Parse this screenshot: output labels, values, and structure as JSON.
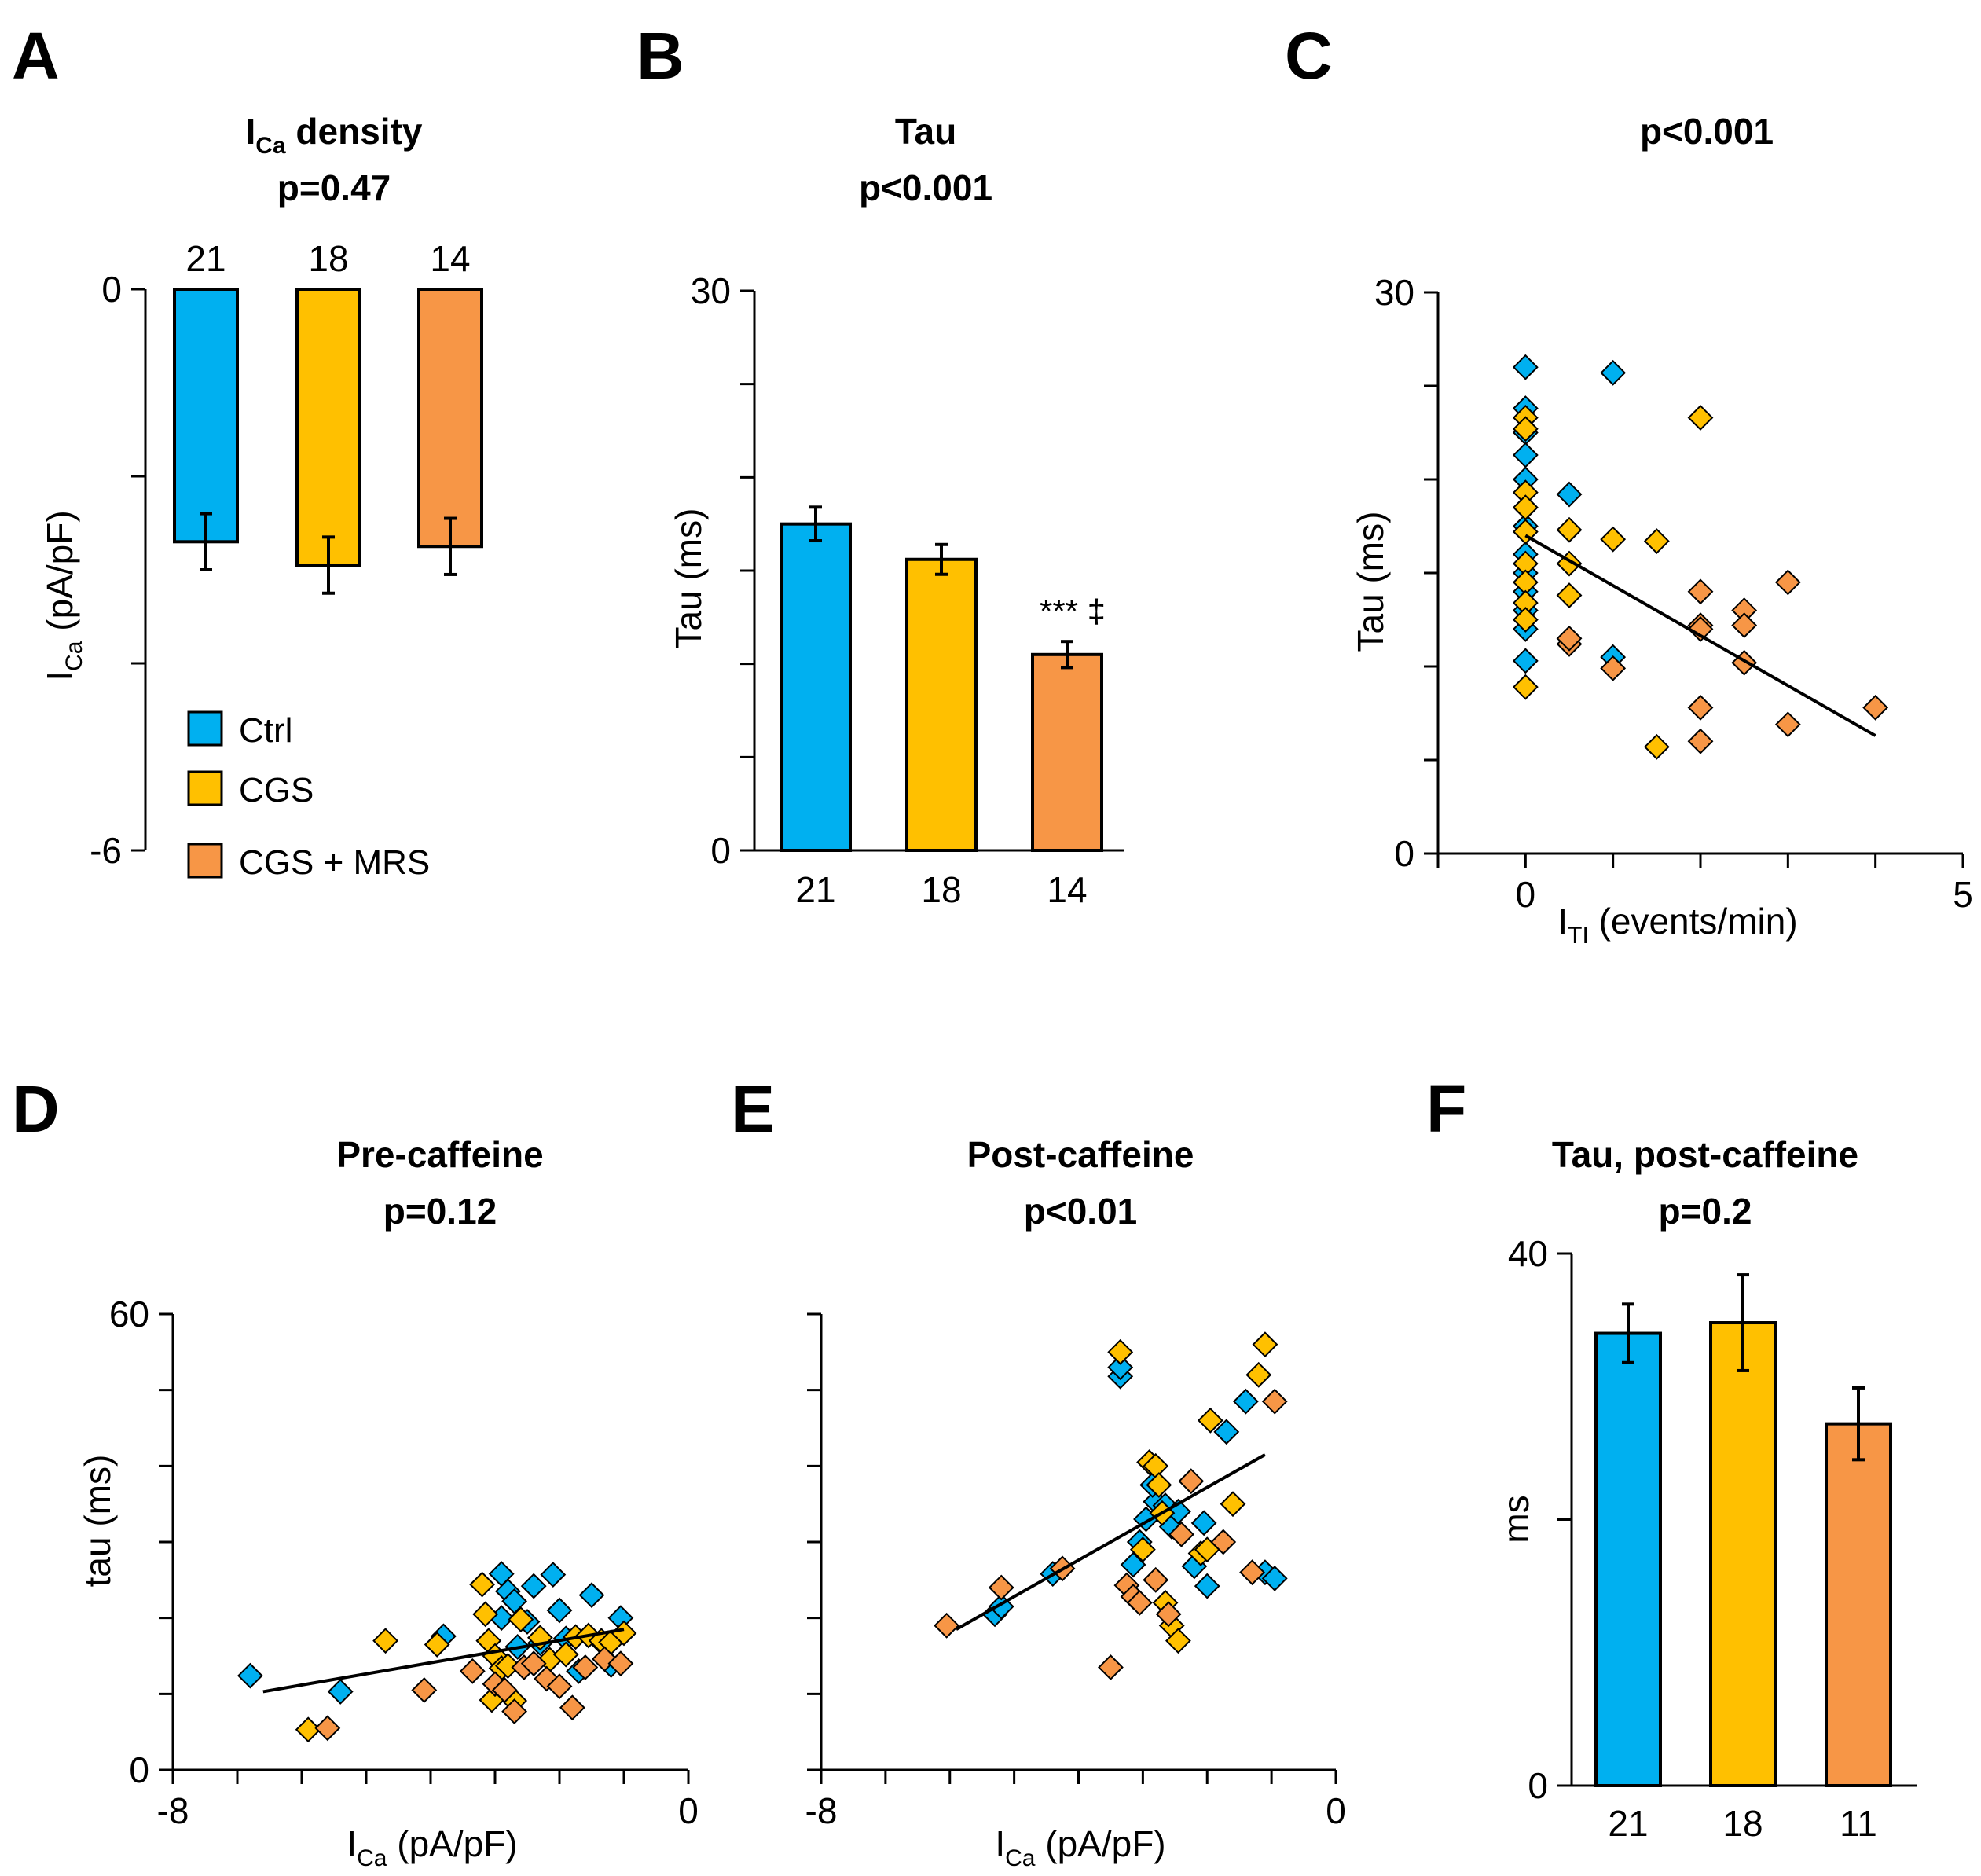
{
  "colors": {
    "ctrl": "#00B0F0",
    "cgs": "#FFC000",
    "cgs_mrs": "#F79646",
    "axis": "#000000"
  },
  "chart_data": [
    {
      "panel": "A",
      "type": "bar",
      "title_main": "I",
      "title_sub": "Ca",
      "title_rest": " density",
      "pvalue": "p=0.47",
      "categories": [
        "Ctrl",
        "CGS",
        "CGS + MRS"
      ],
      "values": [
        -2.7,
        -2.95,
        -2.75
      ],
      "errors": [
        0.3,
        0.3,
        0.3
      ],
      "n": [
        "21",
        "18",
        "14"
      ],
      "ylim": [
        -6,
        0
      ],
      "yticks": [
        0,
        -2,
        -4,
        -6
      ],
      "ytick_labels": [
        "0",
        "",
        "",
        "-6"
      ],
      "ylabel_main": "I",
      "ylabel_sub": "Ca",
      "ylabel_rest": " (pA/pF)",
      "legend": [
        "Ctrl",
        "CGS",
        "CGS + MRS"
      ]
    },
    {
      "panel": "B",
      "type": "bar",
      "title": "Tau",
      "pvalue": "p<0.001",
      "categories": [
        "Ctrl",
        "CGS",
        "CGS + MRS"
      ],
      "values": [
        17.5,
        15.6,
        10.5
      ],
      "errors": [
        0.9,
        0.8,
        0.7
      ],
      "n": [
        "21",
        "18",
        "14"
      ],
      "ylim": [
        0,
        30
      ],
      "yticks": [
        0,
        5,
        10,
        15,
        20,
        25,
        30
      ],
      "ytick_labels": [
        "0",
        "",
        "",
        "",
        "",
        "",
        "30"
      ],
      "ylabel": "Tau (ms)",
      "annotation": "*** ‡"
    },
    {
      "panel": "C",
      "type": "scatter",
      "title": "p<0.001",
      "xlim": [
        -1,
        5
      ],
      "ylim": [
        0,
        30
      ],
      "xticks": [
        -1,
        0,
        1,
        2,
        3,
        4,
        5
      ],
      "xtick_labels": [
        "",
        "0",
        "",
        "",
        "",
        "",
        "5"
      ],
      "yticks": [
        0,
        5,
        10,
        15,
        20,
        25,
        30
      ],
      "ytick_labels": [
        "0",
        "",
        "",
        "",
        "",
        "",
        "30"
      ],
      "xlabel_main": "I",
      "xlabel_sub": "TI",
      "xlabel_rest": " (events/min)",
      "ylabel": "Tau (ms)",
      "trendline": [
        [
          0,
          17.0
        ],
        [
          4,
          6.3
        ]
      ],
      "series": [
        {
          "name": "Ctrl",
          "points": [
            [
              0,
              26
            ],
            [
              0,
              23.8
            ],
            [
              0,
              22.5
            ],
            [
              0,
              21.3
            ],
            [
              0,
              20
            ],
            [
              0,
              18.5
            ],
            [
              0,
              17.5
            ],
            [
              0,
              16
            ],
            [
              0,
              15
            ],
            [
              0,
              14
            ],
            [
              0,
              13
            ],
            [
              0,
              12
            ],
            [
              0,
              10.3
            ],
            [
              0.5,
              19.2
            ],
            [
              1,
              25.7
            ],
            [
              1,
              10.5
            ]
          ]
        },
        {
          "name": "CGS",
          "points": [
            [
              0,
              23.3
            ],
            [
              0,
              22.7
            ],
            [
              0,
              19.3
            ],
            [
              0,
              18.5
            ],
            [
              0,
              17.2
            ],
            [
              0,
              15.5
            ],
            [
              0,
              14.5
            ],
            [
              0,
              13.4
            ],
            [
              0,
              12.5
            ],
            [
              0,
              8.9
            ],
            [
              0.5,
              17.3
            ],
            [
              0.5,
              15.5
            ],
            [
              0.5,
              13.8
            ],
            [
              1,
              16.8
            ],
            [
              1.5,
              16.7
            ],
            [
              2,
              23.3
            ],
            [
              1.5,
              5.7
            ]
          ]
        },
        {
          "name": "CGS + MRS",
          "points": [
            [
              0.5,
              11.2
            ],
            [
              0.5,
              11.5
            ],
            [
              1,
              9.9
            ],
            [
              2,
              14
            ],
            [
              2,
              12.2
            ],
            [
              2,
              12
            ],
            [
              2,
              7.8
            ],
            [
              2,
              6
            ],
            [
              2.5,
              13
            ],
            [
              2.5,
              12.2
            ],
            [
              2.5,
              10.2
            ],
            [
              3,
              14.5
            ],
            [
              3,
              6.9
            ],
            [
              4,
              7.8
            ]
          ]
        }
      ]
    },
    {
      "panel": "D",
      "type": "scatter",
      "title": "Pre-caffeine",
      "pvalue": "p=0.12",
      "xlim": [
        -8,
        0
      ],
      "ylim": [
        0,
        60
      ],
      "xticks": [
        -8,
        -7,
        -6,
        -5,
        -4,
        -3,
        -2,
        -1,
        0
      ],
      "xtick_labels": [
        "-8",
        "",
        "",
        "",
        "",
        "",
        "",
        "",
        "0"
      ],
      "yticks": [
        0,
        10,
        20,
        30,
        40,
        50,
        60
      ],
      "ytick_labels": [
        "0",
        "",
        "",
        "",
        "",
        "",
        "60"
      ],
      "xlabel_main": "I",
      "xlabel_sub": "Ca",
      "xlabel_rest": " (pA/pF)",
      "ylabel": "tau (ms)",
      "trendline": [
        [
          -6.6,
          10.3
        ],
        [
          -1,
          18.5
        ]
      ],
      "series": [
        {
          "name": "Ctrl",
          "points": [
            [
              -6.8,
              12.4
            ],
            [
              -5.4,
              10.3
            ],
            [
              -3.8,
              17.6
            ],
            [
              -2.9,
              25.8
            ],
            [
              -2.8,
              23.5
            ],
            [
              -2.7,
              22.2
            ],
            [
              -2.5,
              19.5
            ],
            [
              -2.4,
              24.2
            ],
            [
              -2.3,
              16.7
            ],
            [
              -2.1,
              25.7
            ],
            [
              -2.0,
              21
            ],
            [
              -1.9,
              17.3
            ],
            [
              -1.7,
              13
            ],
            [
              -1.5,
              23
            ],
            [
              -1.3,
              16.4
            ],
            [
              -1.2,
              13.8
            ],
            [
              -1.05,
              20
            ],
            [
              -2.65,
              16.2
            ],
            [
              -2.9,
              20
            ]
          ]
        },
        {
          "name": "CGS",
          "points": [
            [
              -5.9,
              5.3
            ],
            [
              -4.7,
              17
            ],
            [
              -3.9,
              16.5
            ],
            [
              -3.2,
              24.4
            ],
            [
              -3.15,
              20.5
            ],
            [
              -3.1,
              17
            ],
            [
              -3.0,
              15
            ],
            [
              -2.9,
              13.4
            ],
            [
              -2.8,
              13.7
            ],
            [
              -2.6,
              19.8
            ],
            [
              -2.3,
              17.4
            ],
            [
              -2.15,
              14.5
            ],
            [
              -1.9,
              15.2
            ],
            [
              -1.75,
              17.5
            ],
            [
              -1.55,
              17.7
            ],
            [
              -1.35,
              17
            ],
            [
              -1.2,
              16.8
            ],
            [
              -1.0,
              18
            ],
            [
              -3.05,
              9.2
            ],
            [
              -2.7,
              9.1
            ]
          ]
        },
        {
          "name": "CGS + MRS",
          "points": [
            [
              -5.6,
              5.5
            ],
            [
              -4.1,
              10.5
            ],
            [
              -3.35,
              13
            ],
            [
              -3.0,
              11.3
            ],
            [
              -2.85,
              10.5
            ],
            [
              -2.7,
              7.7
            ],
            [
              -2.55,
              13.5
            ],
            [
              -2.4,
              14
            ],
            [
              -2.2,
              12
            ],
            [
              -2.0,
              11
            ],
            [
              -1.8,
              8.2
            ],
            [
              -1.6,
              13.5
            ],
            [
              -1.3,
              14.6
            ],
            [
              -1.05,
              14
            ]
          ]
        }
      ]
    },
    {
      "panel": "E",
      "type": "scatter",
      "title": "Post-caffeine",
      "pvalue": "p<0.01",
      "xlim": [
        -8,
        0
      ],
      "ylim": [
        0,
        60
      ],
      "xticks": [
        -8,
        -7,
        -6,
        -5,
        -4,
        -3,
        -2,
        -1,
        0
      ],
      "xtick_labels": [
        "-8",
        "",
        "",
        "",
        "",
        "",
        "",
        "",
        "0"
      ],
      "yticks": [
        0,
        10,
        20,
        30,
        40,
        50,
        60
      ],
      "ytick_labels": [
        "",
        "",
        "",
        "",
        "",
        "",
        ""
      ],
      "xlabel_main": "I",
      "xlabel_sub": "Ca",
      "xlabel_rest": " (pA/pF)",
      "ylabel": "",
      "trendline": [
        [
          -5.9,
          18.5
        ],
        [
          -1.1,
          41.5
        ]
      ],
      "series": [
        {
          "name": "Ctrl",
          "points": [
            [
              -5.3,
              20.5
            ],
            [
              -5.2,
              21.5
            ],
            [
              -4.4,
              25.8
            ],
            [
              -3.35,
              51.8
            ],
            [
              -3.35,
              53
            ],
            [
              -3.15,
              27
            ],
            [
              -3.05,
              30
            ],
            [
              -2.95,
              33
            ],
            [
              -2.8,
              35.3
            ],
            [
              -2.65,
              34.8
            ],
            [
              -2.55,
              32
            ],
            [
              -2.45,
              34
            ],
            [
              -2.2,
              26.8
            ],
            [
              -2.05,
              32.5
            ],
            [
              -2.0,
              24.2
            ],
            [
              -1.7,
              44.5
            ],
            [
              -1.4,
              48.5
            ],
            [
              -1.1,
              26
            ],
            [
              -0.95,
              25.2
            ],
            [
              -2.85,
              37.5
            ]
          ]
        },
        {
          "name": "CGS",
          "points": [
            [
              -3.35,
              55
            ],
            [
              -3.0,
              29
            ],
            [
              -2.9,
              40.5
            ],
            [
              -2.8,
              40
            ],
            [
              -2.75,
              37.5
            ],
            [
              -2.7,
              33.8
            ],
            [
              -2.65,
              22
            ],
            [
              -2.55,
              19
            ],
            [
              -2.45,
              17
            ],
            [
              -2.1,
              28.5
            ],
            [
              -1.95,
              46
            ],
            [
              -1.6,
              35
            ],
            [
              -1.2,
              52
            ],
            [
              -1.1,
              56
            ],
            [
              -2.0,
              29
            ]
          ]
        },
        {
          "name": "CGS + MRS",
          "points": [
            [
              -6.05,
              19
            ],
            [
              -5.2,
              24
            ],
            [
              -4.25,
              26.5
            ],
            [
              -3.25,
              24.3
            ],
            [
              -3.15,
              22.8
            ],
            [
              -3.05,
              22
            ],
            [
              -2.8,
              25
            ],
            [
              -2.6,
              20.5
            ],
            [
              -2.4,
              31
            ],
            [
              -2.25,
              38
            ],
            [
              -1.75,
              30
            ],
            [
              -1.3,
              26
            ],
            [
              -0.95,
              48.5
            ],
            [
              -3.5,
              13.5
            ]
          ]
        }
      ]
    },
    {
      "panel": "F",
      "type": "bar",
      "title": "Tau, post-caffeine",
      "pvalue": "p=0.2",
      "categories": [
        "Ctrl",
        "CGS",
        "CGS + MRS"
      ],
      "values": [
        34,
        34.8,
        27.2
      ],
      "errors": [
        2.2,
        3.6,
        2.7
      ],
      "n": [
        "21",
        "18",
        "11"
      ],
      "ylim": [
        0,
        40
      ],
      "yticks": [
        0,
        20,
        40
      ],
      "ytick_labels": [
        "0",
        "",
        "40"
      ],
      "ylabel": "ms"
    }
  ]
}
